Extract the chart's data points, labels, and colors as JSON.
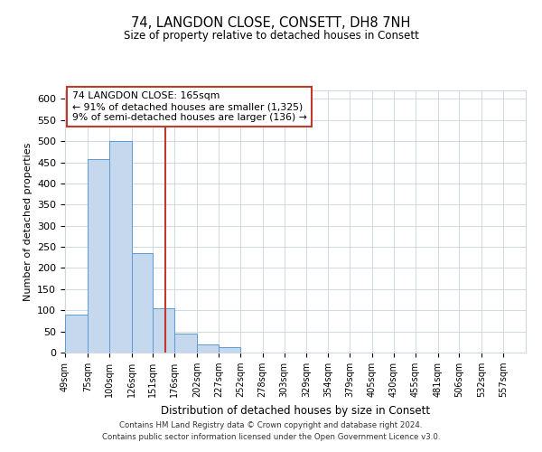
{
  "title": "74, LANGDON CLOSE, CONSETT, DH8 7NH",
  "subtitle": "Size of property relative to detached houses in Consett",
  "xlabel": "Distribution of detached houses by size in Consett",
  "ylabel": "Number of detached properties",
  "bin_labels": [
    "49sqm",
    "75sqm",
    "100sqm",
    "126sqm",
    "151sqm",
    "176sqm",
    "202sqm",
    "227sqm",
    "252sqm",
    "278sqm",
    "303sqm",
    "329sqm",
    "354sqm",
    "379sqm",
    "405sqm",
    "430sqm",
    "455sqm",
    "481sqm",
    "506sqm",
    "532sqm",
    "557sqm"
  ],
  "bar_values": [
    90,
    457,
    500,
    236,
    105,
    45,
    20,
    12,
    0,
    0,
    0,
    0,
    0,
    0,
    0,
    0,
    0,
    0,
    0,
    0,
    1
  ],
  "bar_color": "#c5d8ed",
  "bar_edge_color": "#5b9bd5",
  "property_line_x": 165,
  "property_line_label": "74 LANGDON CLOSE: 165sqm",
  "annotation_line1": "← 91% of detached houses are smaller (1,325)",
  "annotation_line2": "9% of semi-detached houses are larger (136) →",
  "annotation_box_color": "#ffffff",
  "annotation_box_edge_color": "#c0392b",
  "property_line_color": "#c0392b",
  "ylim": [
    0,
    620
  ],
  "yticks": [
    0,
    50,
    100,
    150,
    200,
    250,
    300,
    350,
    400,
    450,
    500,
    550,
    600
  ],
  "bin_edges": [
    49,
    75,
    100,
    126,
    151,
    176,
    202,
    227,
    252,
    278,
    303,
    329,
    354,
    379,
    405,
    430,
    455,
    481,
    506,
    532,
    557,
    583
  ],
  "footnote1": "Contains HM Land Registry data © Crown copyright and database right 2024.",
  "footnote2": "Contains public sector information licensed under the Open Government Licence v3.0.",
  "background_color": "#ffffff",
  "grid_color": "#d0d8e8"
}
